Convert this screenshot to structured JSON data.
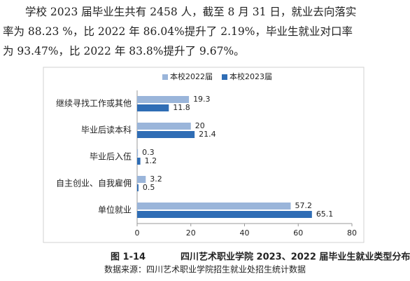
{
  "paragraph": [
    "学校 2023 届毕业生共有 2458 人，截至 8 月 31 日，就业去向落实",
    "率为 88.23 %，比 2022 年 86.04%提升了 2.19%，毕业生就业对口率",
    "为 93.47%，比 2022 年 83.8%提升了 9.67%。"
  ],
  "chart_data": {
    "type": "hbar",
    "categories": [
      "继续寻找工作或其他",
      "毕业后读本科",
      "毕业后入伍",
      "自主创业、自我雇佣",
      "单位就业"
    ],
    "series": [
      {
        "name": "本校2022届",
        "color": "#9ab5da",
        "values": [
          19.3,
          20,
          0.3,
          3.2,
          57.2
        ]
      },
      {
        "name": "本校2023届",
        "color": "#2f6db5",
        "values": [
          11.8,
          21.4,
          1.2,
          0.5,
          65.1
        ]
      }
    ],
    "xlim": [
      0,
      80
    ],
    "xticks": [
      0,
      20,
      40,
      60,
      80
    ],
    "legend": "top"
  },
  "caption": {
    "label": "图 1-14",
    "title": "四川艺术职业学院 2023、2022 届毕业生就业类型分布"
  },
  "source": "数据来源：四川艺术职业学院招生就业处招生统计数据"
}
